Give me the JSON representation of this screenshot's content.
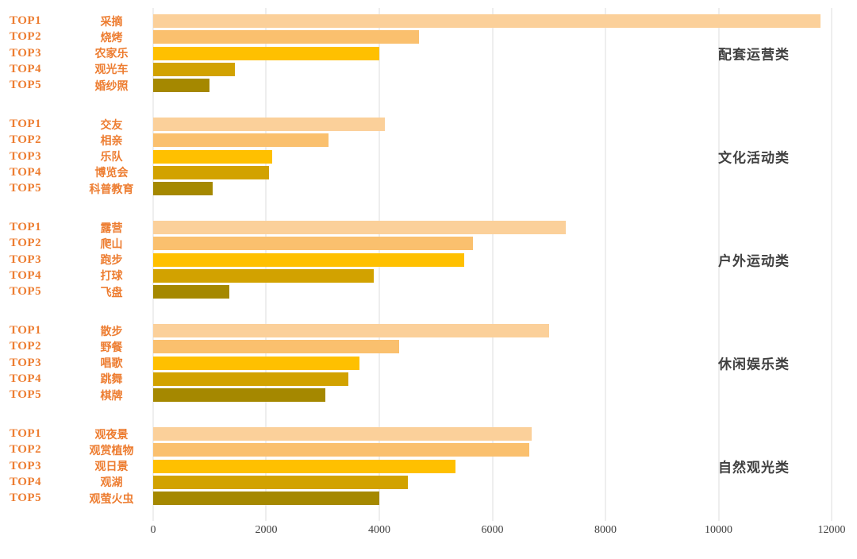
{
  "chart_data": {
    "type": "bar",
    "orientation": "horizontal",
    "title": "",
    "xlabel": "",
    "ylabel": "",
    "xlim": [
      0,
      12000
    ],
    "x_ticks": [
      0,
      2000,
      4000,
      6000,
      8000,
      10000,
      12000
    ],
    "grid": "vertical",
    "rank_labels": [
      "TOP1",
      "TOP2",
      "TOP3",
      "TOP4",
      "TOP5"
    ],
    "rank_colors": [
      "#FBD09A",
      "#FAC06E",
      "#FFC000",
      "#D2A200",
      "#A58800"
    ],
    "groups": [
      {
        "label": "配套运营类",
        "items": [
          {
            "name": "采摘",
            "value": 11800
          },
          {
            "name": "烧烤",
            "value": 4700
          },
          {
            "name": "农家乐",
            "value": 4000
          },
          {
            "name": "观光车",
            "value": 1450
          },
          {
            "name": "婚纱照",
            "value": 1000
          }
        ]
      },
      {
        "label": "文化活动类",
        "items": [
          {
            "name": "交友",
            "value": 4100
          },
          {
            "name": "相亲",
            "value": 3100
          },
          {
            "name": "乐队",
            "value": 2100
          },
          {
            "name": "博览会",
            "value": 2050
          },
          {
            "name": "科普教育",
            "value": 1050
          }
        ]
      },
      {
        "label": "户外运动类",
        "items": [
          {
            "name": "露营",
            "value": 7300
          },
          {
            "name": "爬山",
            "value": 5650
          },
          {
            "name": "跑步",
            "value": 5500
          },
          {
            "name": "打球",
            "value": 3900
          },
          {
            "name": "飞盘",
            "value": 1350
          }
        ]
      },
      {
        "label": "休闲娱乐类",
        "items": [
          {
            "name": "散步",
            "value": 7000
          },
          {
            "name": "野餐",
            "value": 4350
          },
          {
            "name": "唱歌",
            "value": 3650
          },
          {
            "name": "跳舞",
            "value": 3450
          },
          {
            "name": "棋牌",
            "value": 3050
          }
        ]
      },
      {
        "label": "自然观光类",
        "items": [
          {
            "name": "观夜景",
            "value": 6700
          },
          {
            "name": "观赏植物",
            "value": 6650
          },
          {
            "name": "观日景",
            "value": 5350
          },
          {
            "name": "观湖",
            "value": 4500
          },
          {
            "name": "观萤火虫",
            "value": 4000
          }
        ]
      }
    ]
  },
  "styles": {
    "rank_label_color": "#ED7D31",
    "item_name_color": "#ED7D31",
    "group_label_color": "#404040",
    "grid_color": "#DCDCDC",
    "axis_text_color": "#404040"
  }
}
